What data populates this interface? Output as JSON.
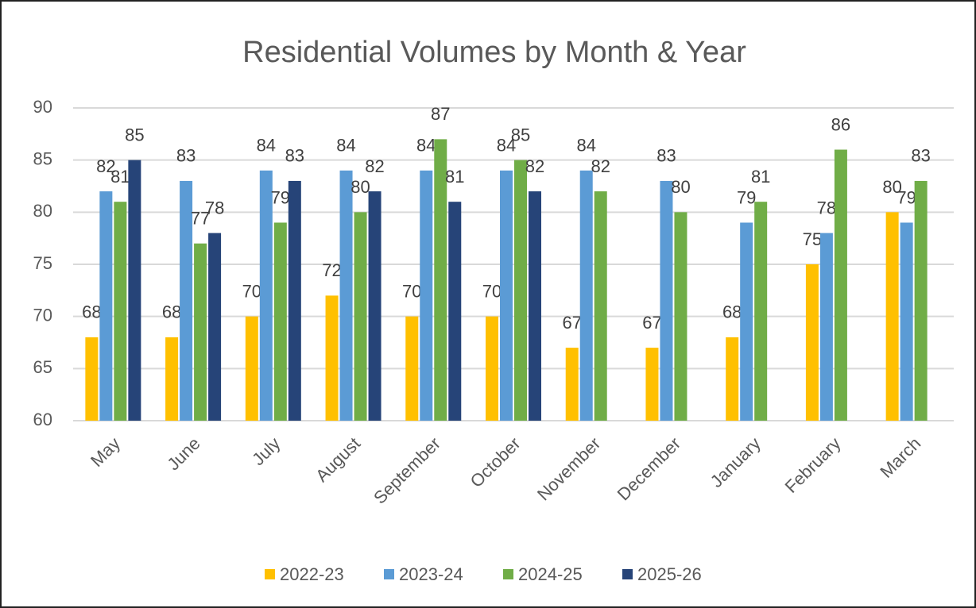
{
  "chart_data": {
    "type": "bar",
    "title": "Residential Volumes by Month & Year",
    "categories": [
      "May",
      "June",
      "July",
      "August",
      "September",
      "October",
      "November",
      "December",
      "January",
      "February",
      "March"
    ],
    "series": [
      {
        "name": "2022-23",
        "color": "#ffc000",
        "values": [
          68,
          68,
          70,
          72,
          70,
          70,
          67,
          67,
          68,
          75,
          80
        ]
      },
      {
        "name": "2023-24",
        "color": "#5b9bd5",
        "values": [
          82,
          83,
          84,
          84,
          84,
          84,
          84,
          83,
          79,
          78,
          79
        ]
      },
      {
        "name": "2024-25",
        "color": "#70ad47",
        "values": [
          81,
          77,
          79,
          80,
          87,
          85,
          82,
          80,
          81,
          86,
          83
        ]
      },
      {
        "name": "2025-26",
        "color": "#264478",
        "values": [
          85,
          78,
          83,
          82,
          81,
          82,
          null,
          null,
          null,
          null,
          null
        ]
      }
    ],
    "ylim": [
      60,
      90
    ],
    "yticks": [
      60,
      65,
      70,
      75,
      80,
      85,
      90
    ],
    "grid": true,
    "legend": "bottom"
  }
}
